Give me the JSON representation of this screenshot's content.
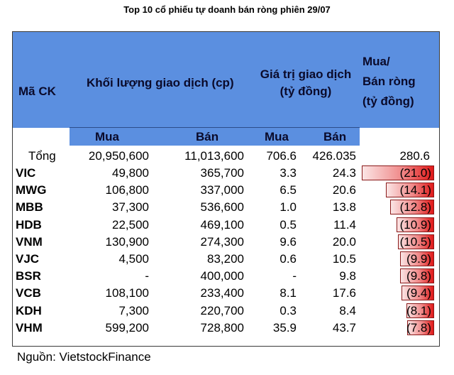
{
  "title": "Top 10 cổ phiếu tự doanh bán ròng phiên 29/07",
  "source": "Nguồn: VietstockFinance",
  "colors": {
    "header": "#5b8fe0",
    "bar": "#e01818",
    "bar_light": "#fbe5e5"
  },
  "headers": {
    "code": "Mã CK",
    "volume": "Khối lượng giao dịch (cp)",
    "value_line1": "Giá trị giao dịch",
    "value_line2": "(tỷ đồng)",
    "net_line1": "Mua/",
    "net_line2": "Bán ròng",
    "net_line3": "(tỷ đồng)",
    "buy": "Mua",
    "sell": "Bán",
    "buy2": "Mua",
    "sell2": "Bán"
  },
  "total": {
    "label": "Tổng",
    "vol_buy": "20,950,600",
    "vol_sell": "11,013,600",
    "val_buy": "706.6",
    "val_sell": "426.035",
    "net": "280.6"
  },
  "chart_data": {
    "type": "table",
    "columns": [
      "Mã CK",
      "KL Mua",
      "KL Bán",
      "GT Mua",
      "GT Bán",
      "Mua/Bán ròng"
    ],
    "net_max_abs": 21.0,
    "rows": [
      {
        "code": "VIC",
        "vol_buy": "49,800",
        "vol_sell": "365,700",
        "val_buy": "3.3",
        "val_sell": "24.3",
        "net": -21.0,
        "net_label": "(21.0)"
      },
      {
        "code": "MWG",
        "vol_buy": "106,800",
        "vol_sell": "337,000",
        "val_buy": "6.5",
        "val_sell": "20.6",
        "net": -14.1,
        "net_label": "(14.1)"
      },
      {
        "code": "MBB",
        "vol_buy": "37,300",
        "vol_sell": "536,600",
        "val_buy": "1.0",
        "val_sell": "13.8",
        "net": -12.8,
        "net_label": "(12.8)"
      },
      {
        "code": "HDB",
        "vol_buy": "22,500",
        "vol_sell": "469,100",
        "val_buy": "0.5",
        "val_sell": "11.4",
        "net": -10.9,
        "net_label": "(10.9)"
      },
      {
        "code": "VNM",
        "vol_buy": "130,900",
        "vol_sell": "274,300",
        "val_buy": "9.6",
        "val_sell": "20.0",
        "net": -10.5,
        "net_label": "(10.5)"
      },
      {
        "code": "VJC",
        "vol_buy": "4,500",
        "vol_sell": "83,200",
        "val_buy": "0.6",
        "val_sell": "10.5",
        "net": -9.9,
        "net_label": "(9.9)"
      },
      {
        "code": "BSR",
        "vol_buy": "-",
        "vol_sell": "400,000",
        "val_buy": "-",
        "val_sell": "9.8",
        "net": -9.8,
        "net_label": "(9.8)"
      },
      {
        "code": "VCB",
        "vol_buy": "108,100",
        "vol_sell": "233,400",
        "val_buy": "8.1",
        "val_sell": "17.6",
        "net": -9.4,
        "net_label": "(9.4)"
      },
      {
        "code": "KDH",
        "vol_buy": "7,300",
        "vol_sell": "220,700",
        "val_buy": "0.3",
        "val_sell": "8.4",
        "net": -8.1,
        "net_label": "(8.1)"
      },
      {
        "code": "VHM",
        "vol_buy": "599,200",
        "vol_sell": "728,800",
        "val_buy": "35.9",
        "val_sell": "43.7",
        "net": -7.8,
        "net_label": "(7.8)"
      }
    ]
  }
}
